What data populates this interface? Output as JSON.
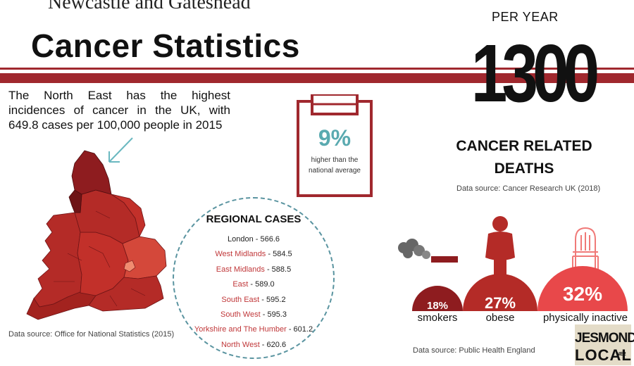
{
  "header": {
    "place": "Newcastle and Gateshead",
    "title": "Cancer Statistics"
  },
  "intro": {
    "text": "The North East has the highest incidences of cancer in the UK, with 649.8 cases per 100,000 people in 2015"
  },
  "comparison": {
    "percent": "9%",
    "label": "higher than the national average"
  },
  "deaths": {
    "period": "PER YEAR",
    "number": "1300",
    "label_line1": "CANCER RELATED",
    "label_line2": "DEATHS",
    "source": "Data source: Cancer Research UK (2018)"
  },
  "map": {
    "source": "Data source: Office for National Statistics (2015)",
    "colors": {
      "dark": "#8e1c1f",
      "mid": "#b42b27",
      "light": "#d4483a",
      "highlight": "#f08c70"
    }
  },
  "regional": {
    "title": "REGIONAL CASES",
    "items": [
      {
        "name": "London",
        "value": "566.6",
        "color": "plain"
      },
      {
        "name": "West Midlands",
        "value": "584.5",
        "color": "red"
      },
      {
        "name": "East Midlands",
        "value": "588.5",
        "color": "red"
      },
      {
        "name": "East",
        "value": "589.0",
        "color": "red"
      },
      {
        "name": "South East",
        "value": "595.2",
        "color": "red"
      },
      {
        "name": "South West",
        "value": "595.3",
        "color": "red"
      },
      {
        "name": "Yorkshire and The Humber",
        "value": "601.2",
        "color": "red"
      },
      {
        "name": "North West",
        "value": "620.6",
        "color": "red"
      }
    ]
  },
  "risk_factors": {
    "items": [
      {
        "label": "smokers",
        "percent": "18%",
        "color": "#8e1c1f"
      },
      {
        "label": "obese",
        "percent": "27%",
        "color": "#b42b27"
      },
      {
        "label": "physically inactive",
        "percent": "32%",
        "color": "#e8484a"
      }
    ],
    "source": "Data source: Public Health England"
  },
  "logo": {
    "line1": "JESMOND",
    "line2": "LOCAL",
    "suffix": "NE2"
  }
}
